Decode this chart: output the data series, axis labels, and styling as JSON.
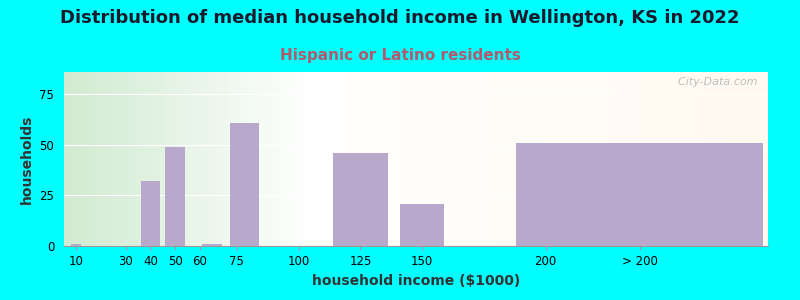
{
  "title": "Distribution of median household income in Wellington, KS in 2022",
  "subtitle": "Hispanic or Latino residents",
  "xlabel": "household income ($1000)",
  "ylabel": "households",
  "background_color": "#00FFFF",
  "bar_color": "#B8A8CC",
  "bar_centers": [
    10,
    40,
    50,
    65,
    78,
    125,
    150,
    238
  ],
  "bar_widths": [
    4,
    8,
    8,
    8,
    12,
    22,
    18,
    100
  ],
  "bar_heights": [
    1,
    32,
    49,
    1,
    61,
    46,
    21,
    51
  ],
  "xtick_labels": [
    "10",
    "30",
    "40",
    "50",
    "60",
    "75",
    "100",
    "125",
    "150",
    "200",
    "> 200"
  ],
  "xtick_positions": [
    10,
    30,
    40,
    50,
    60,
    75,
    100,
    125,
    150,
    200,
    238
  ],
  "ytick_labels": [
    "0",
    "25",
    "50",
    "75"
  ],
  "ytick_values": [
    0,
    25,
    50,
    75
  ],
  "ylim": [
    0,
    86
  ],
  "xlim": [
    5,
    290
  ],
  "title_fontsize": 13,
  "subtitle_fontsize": 11,
  "axis_label_fontsize": 10,
  "watermark": "  City-Data.com",
  "title_color": "#1a1a2e",
  "subtitle_color": "#b05a6e"
}
